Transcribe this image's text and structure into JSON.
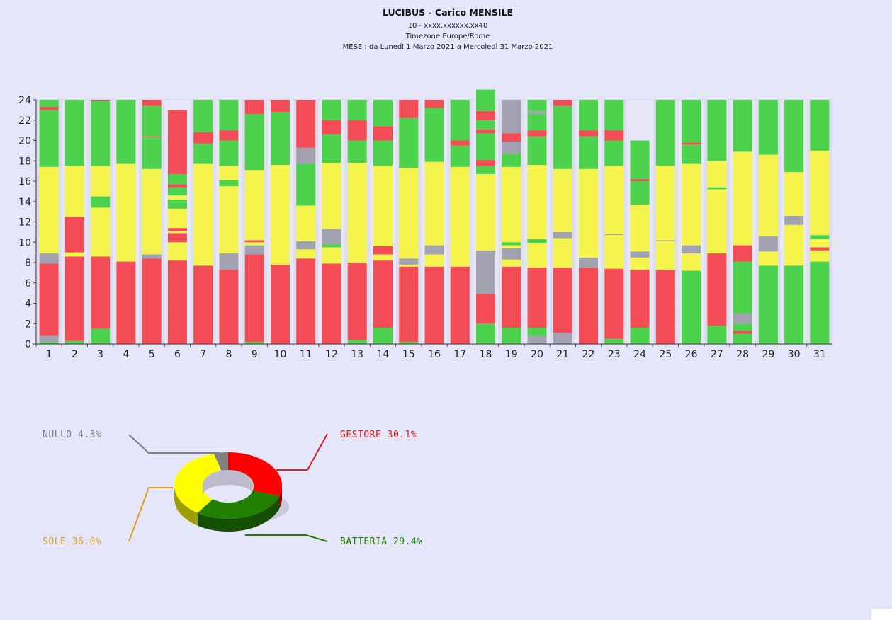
{
  "header": {
    "title": "LUCIBUS - Carico MENSILE",
    "line1": "10 - xxxx.xxxxxx.xx40",
    "line2": "Timezone Europe/Rome",
    "line3": "MESE : da Lunedì 1 Marzo 2021 a Mercoledì 31 Marzo 2021"
  },
  "colors": {
    "gestore": "#f44c56",
    "sole": "#f4f44c",
    "batteria": "#4cd24c",
    "nullo": "#a2a2b0"
  },
  "chart_data": [
    {
      "type": "bar",
      "stacked": true,
      "title": "LUCIBUS - Carico MENSILE",
      "xlabel": "",
      "ylabel": "",
      "ylim": [
        0,
        24
      ],
      "yticks": [
        "0",
        "2",
        "4",
        "6",
        "8",
        "10",
        "12",
        "14",
        "16",
        "18",
        "20",
        "22",
        "24"
      ],
      "categories": [
        "1",
        "2",
        "3",
        "4",
        "5",
        "6",
        "7",
        "8",
        "9",
        "10",
        "11",
        "12",
        "13",
        "14",
        "15",
        "16",
        "17",
        "18",
        "19",
        "20",
        "21",
        "22",
        "23",
        "24",
        "25",
        "26",
        "27",
        "28",
        "29",
        "30",
        "31"
      ],
      "days": [
        [
          [
            "B",
            0.2
          ],
          [
            "N",
            0.6
          ],
          [
            "G",
            7.1
          ],
          [
            "N",
            1.0
          ],
          [
            "S",
            8.5
          ],
          [
            "B",
            5.6
          ],
          [
            "G",
            0.3
          ],
          [
            "B",
            0.7
          ]
        ],
        [
          [
            "B",
            0.3
          ],
          [
            "G",
            8.3
          ],
          [
            "S",
            0.4
          ],
          [
            "G",
            3.5
          ],
          [
            "S",
            5.0
          ],
          [
            "B",
            6.5
          ]
        ],
        [
          [
            "B",
            1.5
          ],
          [
            "G",
            7.1
          ],
          [
            "S",
            4.8
          ],
          [
            "B",
            1.1
          ],
          [
            "S",
            3.0
          ],
          [
            "B",
            6.4
          ],
          [
            "G",
            0.1
          ]
        ],
        [
          [
            "G",
            8.1
          ],
          [
            "S",
            9.6
          ],
          [
            "B",
            6.3
          ]
        ],
        [
          [
            "G",
            8.4
          ],
          [
            "N",
            0.4
          ],
          [
            "S",
            8.4
          ],
          [
            "B",
            3.1
          ],
          [
            "G",
            0.1
          ],
          [
            "B",
            3.0
          ],
          [
            "G",
            0.6
          ]
        ],
        [
          [
            "G",
            8.2
          ],
          [
            "S",
            1.8
          ],
          [
            "G",
            0.9
          ],
          [
            "S",
            0.2
          ],
          [
            "G",
            0.3
          ],
          [
            "S",
            1.9
          ],
          [
            "B",
            0.9
          ],
          [
            "S",
            0.4
          ],
          [
            "B",
            0.8
          ],
          [
            "G",
            0.3
          ],
          [
            "B",
            1.0
          ],
          [
            "G",
            6.3
          ]
        ],
        [
          [
            "G",
            7.7
          ],
          [
            "S",
            10.0
          ],
          [
            "B",
            2.0
          ],
          [
            "G",
            1.1
          ],
          [
            "B",
            3.2
          ]
        ],
        [
          [
            "G",
            7.3
          ],
          [
            "N",
            1.6
          ],
          [
            "S",
            6.6
          ],
          [
            "B",
            0.6
          ],
          [
            "S",
            1.4
          ],
          [
            "B",
            2.5
          ],
          [
            "G",
            1.0
          ],
          [
            "B",
            3.0
          ]
        ],
        [
          [
            "B",
            0.2
          ],
          [
            "G",
            8.6
          ],
          [
            "N",
            0.9
          ],
          [
            "S",
            0.3
          ],
          [
            "G",
            0.2
          ],
          [
            "S",
            6.9
          ],
          [
            "B",
            5.5
          ],
          [
            "G",
            1.4
          ]
        ],
        [
          [
            "G",
            7.8
          ],
          [
            "S",
            9.8
          ],
          [
            "B",
            5.2
          ],
          [
            "G",
            1.2
          ]
        ],
        [
          [
            "G",
            8.4
          ],
          [
            "S",
            0.9
          ],
          [
            "N",
            0.8
          ],
          [
            "S",
            3.5
          ],
          [
            "B",
            4.1
          ],
          [
            "N",
            1.6
          ],
          [
            "G",
            4.7
          ]
        ],
        [
          [
            "G",
            7.9
          ],
          [
            "S",
            1.6
          ],
          [
            "B",
            0.3
          ],
          [
            "N",
            1.5
          ],
          [
            "S",
            6.5
          ],
          [
            "B",
            2.8
          ],
          [
            "G",
            1.4
          ],
          [
            "B",
            2.0
          ]
        ],
        [
          [
            "B",
            0.4
          ],
          [
            "G",
            7.6
          ],
          [
            "S",
            9.8
          ],
          [
            "B",
            2.2
          ],
          [
            "G",
            2.0
          ],
          [
            "B",
            2.0
          ]
        ],
        [
          [
            "B",
            1.6
          ],
          [
            "G",
            6.6
          ],
          [
            "S",
            0.6
          ],
          [
            "G",
            0.8
          ],
          [
            "S",
            7.9
          ],
          [
            "B",
            2.5
          ],
          [
            "G",
            1.4
          ],
          [
            "B",
            2.6
          ]
        ],
        [
          [
            "B",
            0.2
          ],
          [
            "G",
            7.4
          ],
          [
            "S",
            0.2
          ],
          [
            "N",
            0.6
          ],
          [
            "S",
            8.9
          ],
          [
            "B",
            4.9
          ],
          [
            "G",
            1.8
          ]
        ],
        [
          [
            "G",
            7.6
          ],
          [
            "S",
            1.2
          ],
          [
            "N",
            0.9
          ],
          [
            "S",
            8.2
          ],
          [
            "B",
            5.3
          ],
          [
            "G",
            0.8
          ]
        ],
        [
          [
            "G",
            7.6
          ],
          [
            "S",
            9.8
          ],
          [
            "B",
            2.1
          ],
          [
            "G",
            0.5
          ],
          [
            "B",
            4.0
          ]
        ],
        [
          [
            "B",
            2.0
          ],
          [
            "G",
            2.9
          ],
          [
            "N",
            4.3
          ],
          [
            "S",
            7.5
          ],
          [
            "B",
            0.8
          ],
          [
            "G",
            0.6
          ],
          [
            "B",
            2.6
          ],
          [
            "G",
            0.4
          ],
          [
            "B",
            0.9
          ],
          [
            "G",
            0.9
          ],
          [
            "B",
            2.1
          ]
        ],
        [
          [
            "B",
            1.6
          ],
          [
            "G",
            6.0
          ],
          [
            "S",
            0.7
          ],
          [
            "N",
            1.1
          ],
          [
            "S",
            0.3
          ],
          [
            "B",
            0.3
          ],
          [
            "S",
            7.4
          ],
          [
            "B",
            1.3
          ],
          [
            "N",
            1.2
          ],
          [
            "G",
            0.8
          ],
          [
            "N",
            3.3
          ]
        ],
        [
          [
            "N",
            0.8
          ],
          [
            "B",
            0.8
          ],
          [
            "G",
            5.9
          ],
          [
            "S",
            2.4
          ],
          [
            "B",
            0.4
          ],
          [
            "S",
            7.3
          ],
          [
            "B",
            2.8
          ],
          [
            "G",
            0.6
          ],
          [
            "B",
            1.6
          ],
          [
            "N",
            0.3
          ],
          [
            "B",
            1.1
          ]
        ],
        [
          [
            "N",
            1.1
          ],
          [
            "G",
            6.4
          ],
          [
            "S",
            2.9
          ],
          [
            "N",
            0.6
          ],
          [
            "S",
            6.2
          ],
          [
            "B",
            6.2
          ],
          [
            "G",
            0.6
          ]
        ],
        [
          [
            "G",
            7.5
          ],
          [
            "N",
            1.0
          ],
          [
            "S",
            8.7
          ],
          [
            "B",
            3.2
          ],
          [
            "G",
            0.6
          ],
          [
            "B",
            3.0
          ]
        ],
        [
          [
            "B",
            0.5
          ],
          [
            "G",
            6.9
          ],
          [
            "S",
            3.3
          ],
          [
            "N",
            0.1
          ],
          [
            "S",
            6.7
          ],
          [
            "B",
            2.5
          ],
          [
            "G",
            1.0
          ],
          [
            "B",
            3.0
          ]
        ],
        [
          [
            "B",
            1.6
          ],
          [
            "G",
            5.7
          ],
          [
            "S",
            1.2
          ],
          [
            "N",
            0.6
          ],
          [
            "S",
            4.6
          ],
          [
            "B",
            2.3
          ],
          [
            "G",
            0.2
          ],
          [
            "B",
            3.8
          ]
        ],
        [
          [
            "G",
            7.3
          ],
          [
            "S",
            2.8
          ],
          [
            "N",
            0.1
          ],
          [
            "S",
            7.3
          ],
          [
            "B",
            6.5
          ]
        ],
        [
          [
            "B",
            7.2
          ],
          [
            "S",
            1.7
          ],
          [
            "N",
            0.8
          ],
          [
            "S",
            8.0
          ],
          [
            "B",
            1.9
          ],
          [
            "G",
            0.2
          ],
          [
            "B",
            4.2
          ]
        ],
        [
          [
            "B",
            1.8
          ],
          [
            "G",
            7.1
          ],
          [
            "S",
            6.3
          ],
          [
            "B",
            0.2
          ],
          [
            "S",
            2.6
          ],
          [
            "B",
            6.0
          ]
        ],
        [
          [
            "B",
            1.0
          ],
          [
            "G",
            0.3
          ],
          [
            "B",
            0.7
          ],
          [
            "N",
            1.0
          ],
          [
            "B",
            5.1
          ],
          [
            "G",
            1.6
          ],
          [
            "S",
            9.2
          ],
          [
            "B",
            5.1
          ]
        ],
        [
          [
            "B",
            7.7
          ],
          [
            "S",
            1.4
          ],
          [
            "N",
            1.5
          ],
          [
            "S",
            8.0
          ],
          [
            "B",
            5.4
          ]
        ],
        [
          [
            "B",
            7.7
          ],
          [
            "S",
            4.0
          ],
          [
            "N",
            0.9
          ],
          [
            "S",
            4.3
          ],
          [
            "B",
            7.1
          ]
        ],
        [
          [
            "B",
            8.1
          ],
          [
            "S",
            1.1
          ],
          [
            "G",
            0.3
          ],
          [
            "S",
            0.8
          ],
          [
            "B",
            0.4
          ],
          [
            "S",
            8.3
          ],
          [
            "B",
            5.0
          ]
        ]
      ]
    },
    {
      "type": "pie",
      "categories": [
        "GESTORE",
        "BATTERIA",
        "SOLE",
        "NULLO"
      ],
      "values": [
        30.1,
        29.4,
        36.0,
        4.3
      ],
      "labels": [
        "GESTORE  30.1%",
        "BATTERIA  29.4%",
        "SOLE  36.0%",
        "NULLO  4.3%"
      ],
      "slice_colors": [
        "#ff0000",
        "#228000",
        "#ffff00",
        "#808080"
      ],
      "label_colors": [
        "#e02020",
        "#228000",
        "#dca01e",
        "#808080"
      ]
    }
  ]
}
